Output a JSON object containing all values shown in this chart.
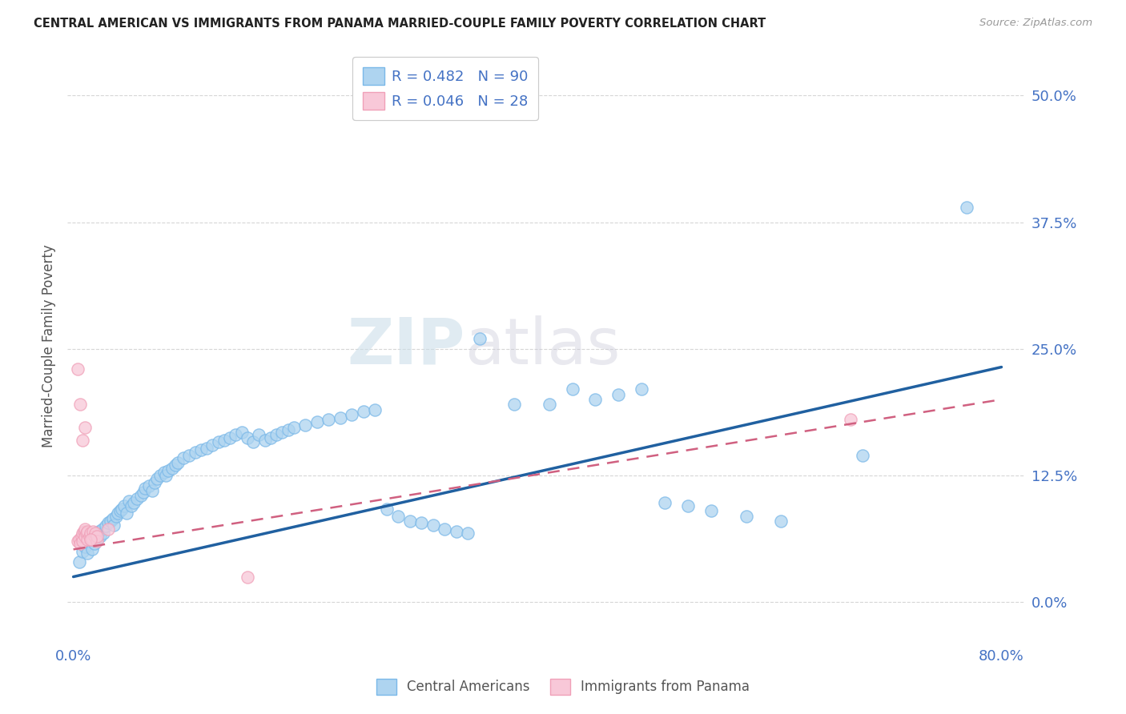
{
  "title": "CENTRAL AMERICAN VS IMMIGRANTS FROM PANAMA MARRIED-COUPLE FAMILY POVERTY CORRELATION CHART",
  "source": "Source: ZipAtlas.com",
  "ylabel": "Married-Couple Family Poverty",
  "ytick_labels": [
    "0.0%",
    "12.5%",
    "25.0%",
    "37.5%",
    "50.0%"
  ],
  "ytick_values": [
    0.0,
    0.125,
    0.25,
    0.375,
    0.5
  ],
  "xlim": [
    -0.005,
    0.82
  ],
  "ylim": [
    -0.04,
    0.545
  ],
  "legend_r1": "R = 0.482",
  "legend_n1": "N = 90",
  "legend_r2": "R = 0.046",
  "legend_n2": "N = 28",
  "blue_edge": "#7ab8e8",
  "blue_fill": "#aed4f0",
  "pink_edge": "#f0a0b8",
  "pink_fill": "#f8c8d8",
  "trend_blue": "#2060a0",
  "trend_pink": "#d06080",
  "watermark_zip": "ZIP",
  "watermark_atlas": "atlas",
  "blue_scatter_x": [
    0.005,
    0.008,
    0.01,
    0.012,
    0.015,
    0.016,
    0.018,
    0.02,
    0.022,
    0.023,
    0.025,
    0.026,
    0.028,
    0.03,
    0.032,
    0.034,
    0.035,
    0.037,
    0.038,
    0.04,
    0.042,
    0.044,
    0.046,
    0.048,
    0.05,
    0.052,
    0.055,
    0.058,
    0.06,
    0.062,
    0.065,
    0.068,
    0.07,
    0.072,
    0.075,
    0.078,
    0.08,
    0.082,
    0.085,
    0.088,
    0.09,
    0.095,
    0.1,
    0.105,
    0.11,
    0.115,
    0.12,
    0.125,
    0.13,
    0.135,
    0.14,
    0.145,
    0.15,
    0.155,
    0.16,
    0.165,
    0.17,
    0.175,
    0.18,
    0.185,
    0.19,
    0.2,
    0.21,
    0.22,
    0.23,
    0.24,
    0.25,
    0.26,
    0.27,
    0.28,
    0.29,
    0.3,
    0.31,
    0.32,
    0.33,
    0.34,
    0.35,
    0.38,
    0.41,
    0.43,
    0.45,
    0.47,
    0.49,
    0.51,
    0.53,
    0.55,
    0.58,
    0.61,
    0.68,
    0.77
  ],
  "blue_scatter_y": [
    0.04,
    0.05,
    0.055,
    0.048,
    0.06,
    0.052,
    0.058,
    0.062,
    0.07,
    0.065,
    0.072,
    0.068,
    0.075,
    0.078,
    0.08,
    0.082,
    0.076,
    0.085,
    0.088,
    0.09,
    0.092,
    0.095,
    0.088,
    0.1,
    0.095,
    0.098,
    0.102,
    0.105,
    0.108,
    0.112,
    0.115,
    0.11,
    0.118,
    0.122,
    0.125,
    0.128,
    0.125,
    0.13,
    0.132,
    0.135,
    0.138,
    0.142,
    0.145,
    0.148,
    0.15,
    0.152,
    0.155,
    0.158,
    0.16,
    0.162,
    0.165,
    0.168,
    0.162,
    0.158,
    0.165,
    0.16,
    0.162,
    0.165,
    0.168,
    0.17,
    0.172,
    0.175,
    0.178,
    0.18,
    0.182,
    0.185,
    0.188,
    0.19,
    0.092,
    0.085,
    0.08,
    0.078,
    0.076,
    0.072,
    0.07,
    0.068,
    0.26,
    0.195,
    0.195,
    0.21,
    0.2,
    0.205,
    0.21,
    0.098,
    0.095,
    0.09,
    0.085,
    0.08,
    0.145,
    0.39
  ],
  "pink_scatter_x": [
    0.004,
    0.005,
    0.006,
    0.007,
    0.008,
    0.008,
    0.009,
    0.01,
    0.01,
    0.011,
    0.012,
    0.012,
    0.014,
    0.015,
    0.016,
    0.017,
    0.018,
    0.019,
    0.02,
    0.02,
    0.004,
    0.006,
    0.008,
    0.01,
    0.015,
    0.67,
    0.15,
    0.03
  ],
  "pink_scatter_y": [
    0.06,
    0.062,
    0.058,
    0.065,
    0.068,
    0.06,
    0.07,
    0.065,
    0.072,
    0.068,
    0.062,
    0.07,
    0.065,
    0.068,
    0.062,
    0.07,
    0.065,
    0.068,
    0.06,
    0.065,
    0.23,
    0.195,
    0.16,
    0.172,
    0.062,
    0.18,
    0.025,
    0.072
  ],
  "blue_trend_x0": 0.0,
  "blue_trend_y0": 0.025,
  "blue_trend_x1": 0.8,
  "blue_trend_y1": 0.232,
  "pink_trend_x0": 0.0,
  "pink_trend_y0": 0.052,
  "pink_trend_x1": 0.8,
  "pink_trend_y1": 0.2
}
